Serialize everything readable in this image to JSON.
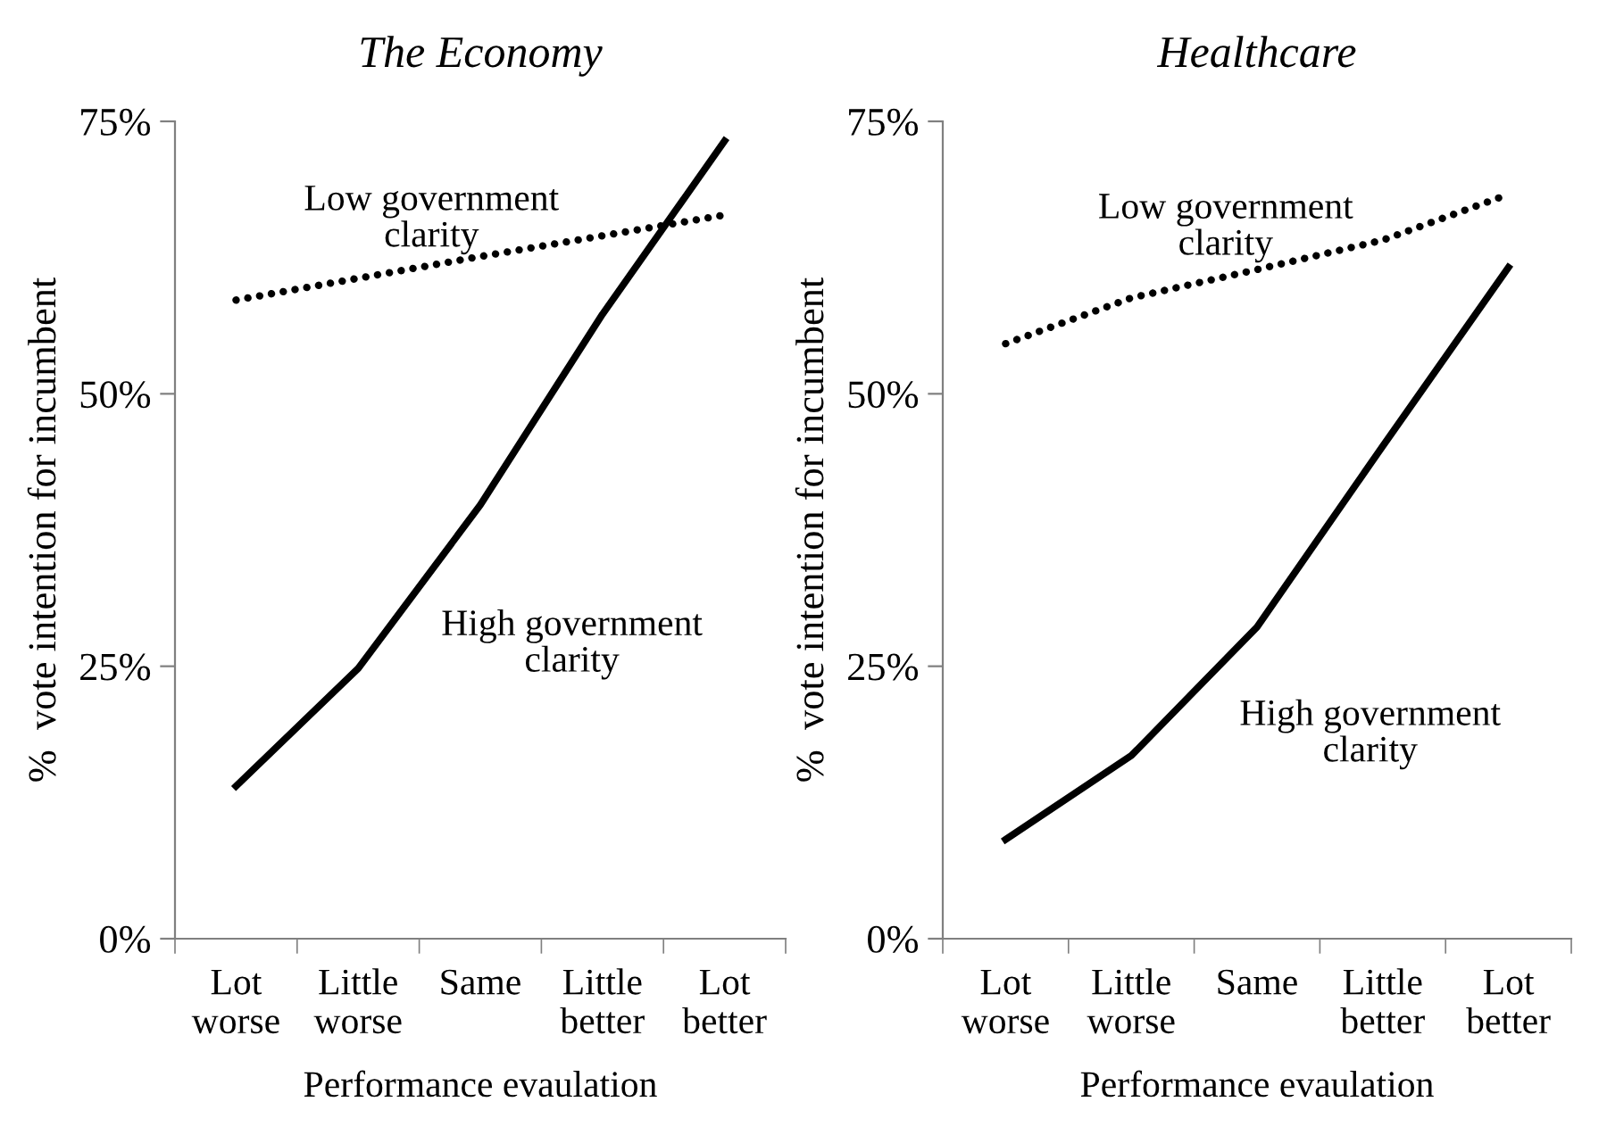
{
  "chart_data": [
    {
      "type": "line",
      "title": "The Economy",
      "xlabel": "Performance evaulation",
      "ylabel": "%  vote intention for incumbent",
      "categories": [
        "Lot\nworse",
        "Little\nworse",
        "Same",
        "Little\nbetter",
        "Lot\nbetter"
      ],
      "ylim": [
        0,
        75
      ],
      "yticks": [
        {
          "value": 0,
          "label": "0%"
        },
        {
          "value": 25,
          "label": "25%"
        },
        {
          "value": 50,
          "label": "50%"
        },
        {
          "value": 75,
          "label": "75%"
        }
      ],
      "grid": false,
      "legend": false,
      "marker": "none",
      "series": [
        {
          "name": "Low government\nclarity",
          "color": "#000000",
          "line_style": "dotted",
          "values": [
            58.6,
            60.6,
            62.6,
            64.5,
            66.4
          ]
        },
        {
          "name": "High government\nclarity",
          "color": "#000000",
          "line_style": "solid",
          "values": [
            14.0,
            24.8,
            39.8,
            57.3,
            73.2
          ]
        }
      ]
    },
    {
      "type": "line",
      "title": "Healthcare",
      "xlabel": "Performance evaulation",
      "ylabel": "%  vote intention for incumbent",
      "categories": [
        "Lot\nworse",
        "Little\nworse",
        "Same",
        "Little\nbetter",
        "Lot\nbetter"
      ],
      "ylim": [
        0,
        75
      ],
      "yticks": [
        {
          "value": 0,
          "label": "0%"
        },
        {
          "value": 25,
          "label": "25%"
        },
        {
          "value": 50,
          "label": "50%"
        },
        {
          "value": 75,
          "label": "75%"
        }
      ],
      "grid": false,
      "legend": false,
      "marker": "none",
      "series": [
        {
          "name": "Low government\nclarity",
          "color": "#000000",
          "line_style": "dotted",
          "values": [
            54.6,
            58.8,
            61.4,
            64.1,
            68.3
          ]
        },
        {
          "name": "High government\nclarity",
          "color": "#000000",
          "line_style": "solid",
          "values": [
            9.1,
            16.8,
            28.6,
            45.2,
            61.6
          ]
        }
      ]
    }
  ]
}
